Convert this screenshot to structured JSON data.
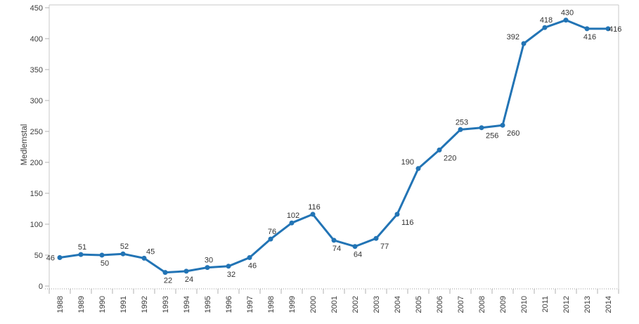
{
  "chart_data": {
    "type": "line",
    "title": "",
    "xlabel": "",
    "ylabel": "Medlemstal",
    "categories": [
      "1988",
      "1989",
      "1990",
      "1991",
      "1992",
      "1993",
      "1994",
      "1995",
      "1996",
      "1997",
      "1998",
      "1999",
      "2000",
      "2001",
      "2002",
      "2003",
      "2004",
      "2005",
      "2006",
      "2007",
      "2008",
      "2009",
      "2010",
      "2011",
      "2012",
      "2013",
      "2014"
    ],
    "values": [
      46,
      51,
      50,
      52,
      45,
      22,
      24,
      30,
      32,
      46,
      76,
      102,
      116,
      74,
      64,
      77,
      116,
      190,
      220,
      253,
      256,
      260,
      392,
      418,
      430,
      416,
      416
    ],
    "ylim": [
      0,
      450
    ],
    "ytick_step": 50,
    "grid": false,
    "legend_position": "none",
    "line_color": "#2274b5",
    "marker": "circle",
    "label_color": "#333333",
    "axis_line_color": "#c9c9c9",
    "tick_color": "#b2b2b2",
    "baseline_dotted_color": "#9b9b9b",
    "label_positions": [
      "left",
      "above",
      "below",
      "above",
      "above-right",
      "below",
      "below",
      "above",
      "below",
      "below",
      "above",
      "above",
      "above",
      "below",
      "below",
      "below-right",
      "below-right",
      "above-left",
      "below-right",
      "above",
      "below-right",
      "below-right",
      "above-left",
      "above",
      "above",
      "below",
      "right-overlap"
    ]
  }
}
